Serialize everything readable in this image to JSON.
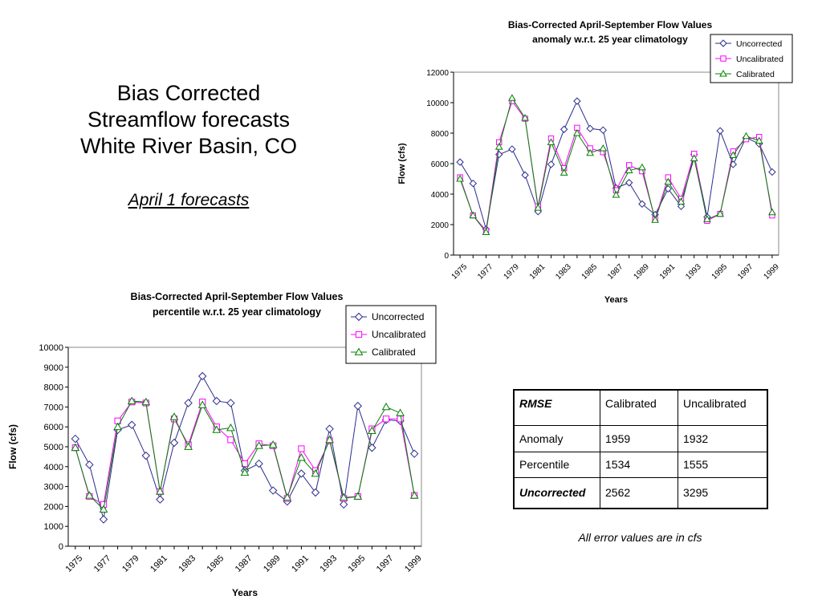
{
  "slide": {
    "title_lines": [
      "Bias Corrected",
      "Streamflow forecasts",
      "White River Basin, CO"
    ],
    "subtitle": "April 1 forecasts"
  },
  "colors": {
    "uncorrected": "#2b2b8f",
    "uncalibrated": "#ff00ff",
    "calibrated": "#008000"
  },
  "chart_data": [
    {
      "type": "line",
      "title": "Bias-Corrected April-September Flow Values",
      "subtitle": "anomaly w.r.t. 25 year climatology",
      "xlabel": "Years",
      "ylabel": "Flow (cfs)",
      "ylim": [
        0,
        12000
      ],
      "yticks": [
        0,
        2000,
        4000,
        6000,
        8000,
        10000,
        12000
      ],
      "xtick_labels": [
        "1975",
        "1977",
        "1979",
        "1981",
        "1983",
        "1985",
        "1987",
        "1989",
        "1991",
        "1993",
        "1995",
        "1997",
        "1999"
      ],
      "legend_position": "top-right",
      "grid": false,
      "x": [
        1975,
        1976,
        1977,
        1978,
        1979,
        1980,
        1981,
        1982,
        1983,
        1984,
        1985,
        1986,
        1987,
        1988,
        1989,
        1990,
        1991,
        1992,
        1993,
        1994,
        1995,
        1996,
        1997,
        1998,
        1999
      ],
      "series": [
        {
          "name": "Uncorrected",
          "marker": "diamond",
          "values": [
            6100,
            4700,
            1700,
            6600,
            6950,
            5250,
            2850,
            5950,
            8250,
            10100,
            8300,
            8200,
            4400,
            4750,
            3350,
            2650,
            4350,
            3200,
            6600,
            2500,
            8150,
            5950,
            7700,
            7300,
            5450
          ]
        },
        {
          "name": "Uncalibrated",
          "marker": "square",
          "values": [
            5100,
            2600,
            1600,
            7400,
            10100,
            8950,
            3200,
            7650,
            5700,
            8350,
            7000,
            6750,
            4250,
            5900,
            5500,
            2350,
            5100,
            3700,
            6650,
            2250,
            2700,
            6800,
            7600,
            7750,
            2600
          ]
        },
        {
          "name": "Calibrated",
          "marker": "triangle",
          "values": [
            5000,
            2600,
            1500,
            7100,
            10300,
            9000,
            3100,
            7400,
            5400,
            8000,
            6700,
            7000,
            3950,
            5550,
            5750,
            2300,
            4800,
            3500,
            6350,
            2350,
            2700,
            6550,
            7800,
            7500,
            2800
          ]
        }
      ]
    },
    {
      "type": "line",
      "title": "Bias-Corrected April-September Flow Values",
      "subtitle": "percentile w.r.t. 25 year climatology",
      "xlabel": "Years",
      "ylabel": "Flow (cfs)",
      "ylim": [
        0,
        10000
      ],
      "yticks": [
        0,
        1000,
        2000,
        3000,
        4000,
        5000,
        6000,
        7000,
        8000,
        9000,
        10000
      ],
      "xtick_labels": [
        "1975",
        "1977",
        "1979",
        "1981",
        "1983",
        "1985",
        "1987",
        "1989",
        "1991",
        "1993",
        "1995",
        "1997",
        "1999"
      ],
      "legend_position": "top-right",
      "grid": false,
      "x": [
        1975,
        1976,
        1977,
        1978,
        1979,
        1980,
        1981,
        1982,
        1983,
        1984,
        1985,
        1986,
        1987,
        1988,
        1989,
        1990,
        1991,
        1992,
        1993,
        1994,
        1995,
        1996,
        1997,
        1998,
        1999
      ],
      "series": [
        {
          "name": "Uncorrected",
          "marker": "diamond",
          "values": [
            5400,
            4100,
            1350,
            5850,
            6100,
            4550,
            2350,
            5200,
            7200,
            8550,
            7300,
            7200,
            3800,
            4150,
            2800,
            2250,
            3650,
            2700,
            5900,
            2100,
            7050,
            4950,
            6350,
            6300,
            4650
          ]
        },
        {
          "name": "Uncalibrated",
          "marker": "square",
          "values": [
            4950,
            2500,
            2100,
            6300,
            7250,
            7200,
            2750,
            6400,
            5100,
            7250,
            6000,
            5350,
            4150,
            5150,
            5050,
            2400,
            4900,
            3800,
            5300,
            2400,
            2500,
            5900,
            6400,
            6400,
            2550
          ]
        },
        {
          "name": "Calibrated",
          "marker": "triangle",
          "values": [
            4950,
            2550,
            1850,
            6000,
            7300,
            7250,
            2750,
            6500,
            5000,
            7100,
            5850,
            5950,
            3700,
            5050,
            5100,
            2450,
            4450,
            3650,
            5350,
            2450,
            2500,
            5800,
            7000,
            6700,
            2550
          ]
        }
      ]
    }
  ],
  "table": {
    "headers": [
      "RMSE",
      "Calibrated",
      "Uncalibrated"
    ],
    "rows": [
      [
        "Anomaly",
        "1959",
        "1932"
      ],
      [
        "Percentile",
        "1534",
        "1555"
      ],
      [
        "Uncorrected",
        "2562",
        "3295"
      ]
    ]
  },
  "footnote": "All error values are in cfs"
}
